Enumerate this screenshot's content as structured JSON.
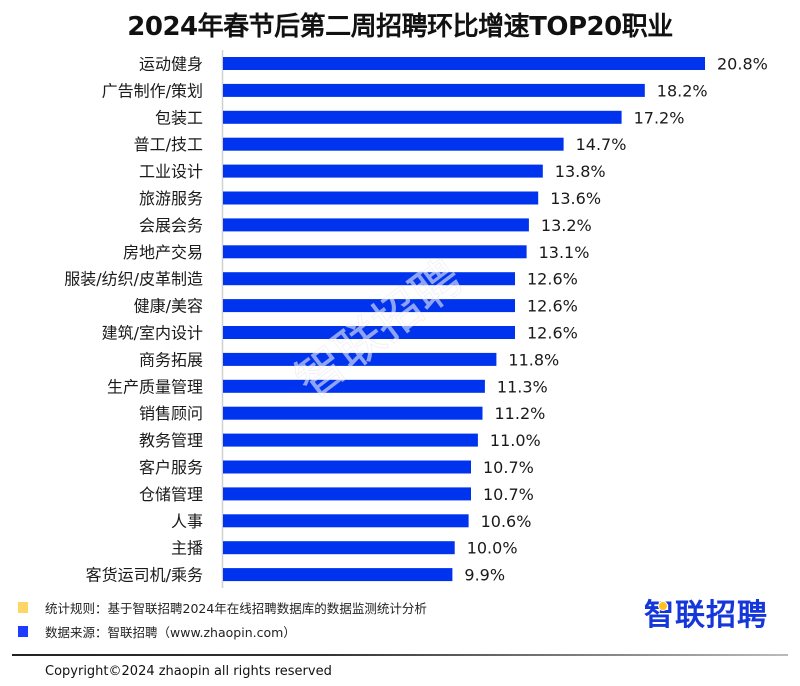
{
  "chart_data": {
    "type": "bar",
    "orientation": "horizontal",
    "title": "2024年春节后第二周招聘环比增速TOP20职业",
    "xlabel": "",
    "ylabel": "",
    "xlim": [
      0,
      20.8
    ],
    "grid": false,
    "value_suffix": "%",
    "categories": [
      "运动健身",
      "广告制作/策划",
      "包装工",
      "普工/技工",
      "工业设计",
      "旅游服务",
      "会展会务",
      "房地产交易",
      "服装/纺织/皮革制造",
      "健康/美容",
      "建筑/室内设计",
      "商务拓展",
      "生产质量管理",
      "销售顾问",
      "教务管理",
      "客户服务",
      "仓储管理",
      "人事",
      "主播",
      "客货运司机/乘务"
    ],
    "values": [
      20.8,
      18.2,
      17.2,
      14.7,
      13.8,
      13.6,
      13.2,
      13.1,
      12.6,
      12.6,
      12.6,
      11.8,
      11.3,
      11.2,
      11.0,
      10.7,
      10.7,
      10.6,
      10.0,
      9.9
    ],
    "value_labels": [
      "20.8%",
      "18.2%",
      "17.2%",
      "14.7%",
      "13.8%",
      "13.6%",
      "13.2%",
      "13.1%",
      "12.6%",
      "12.6%",
      "12.6%",
      "11.8%",
      "11.3%",
      "11.2%",
      "11.0%",
      "10.7%",
      "10.7%",
      "10.6%",
      "10.0%",
      "9.9%"
    ],
    "bar_color": "#0033ee",
    "axis_color": "#d0d0d0"
  },
  "watermark": "智联招聘",
  "legend": {
    "rule": {
      "label": "统计规则：基于智联招聘2024年在线招聘数据库的数据监测统计分析",
      "color": "#ffd566"
    },
    "source": {
      "label": "数据来源：智联招聘（www.zhaopin.com）",
      "color": "#1e3cff"
    }
  },
  "logo": {
    "text": "智联招聘",
    "color": "#1536d9",
    "dot_color": "#ffc21a"
  },
  "footer": {
    "copyright": "Copyright©2024 zhaopin all rights reserved"
  }
}
